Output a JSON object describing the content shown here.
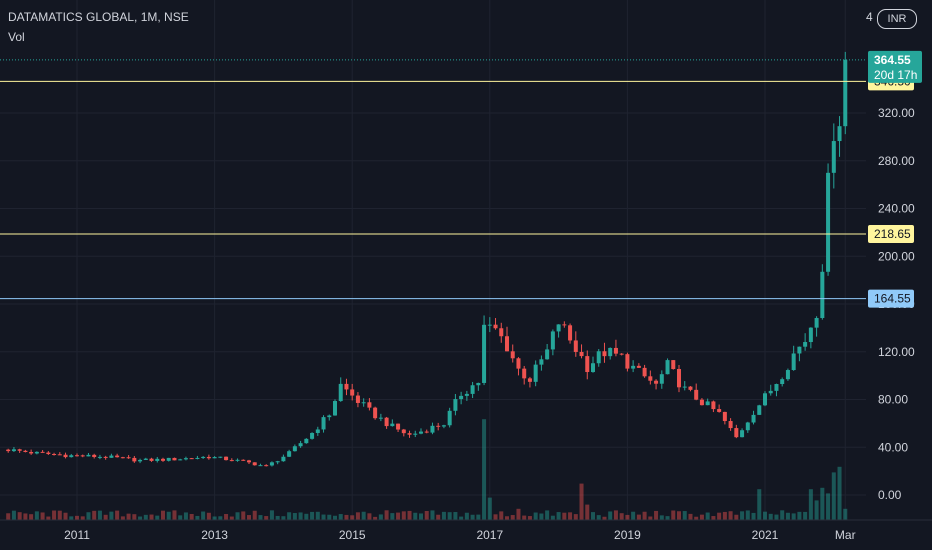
{
  "header": {
    "symbol_line": "DATAMATICS GLOBAL, 1M, NSE",
    "volume_label": "Vol",
    "currency": "INR",
    "currency_prefix": "4"
  },
  "chart_data": {
    "type": "candlestick",
    "title": "DATAMATICS GLOBAL, 1M, NSE",
    "interval": "1M",
    "exchange": "NSE",
    "price_scale": {
      "ylim": [
        -20,
        400
      ],
      "ticks": [
        "0.00",
        "40.00",
        "80.00",
        "120.00",
        "160.00",
        "200.00",
        "240.00",
        "280.00",
        "320.00"
      ],
      "tick_values": [
        0,
        40,
        80,
        120,
        160,
        200,
        240,
        280,
        320
      ]
    },
    "x_axis": {
      "ticks": [
        "2011",
        "2013",
        "2015",
        "2017",
        "2019",
        "2021",
        "Mar"
      ],
      "tick_dates": [
        "2011-01",
        "2013-01",
        "2015-01",
        "2017-01",
        "2019-01",
        "2021-01",
        "2022-03"
      ],
      "start": "2010-01",
      "end": "2022-06"
    },
    "colors": {
      "up": "#26a69a",
      "down": "#ef5350",
      "background": "#131722",
      "grid": "#1f2330",
      "text": "#d1d4dc"
    },
    "last_price": {
      "value": 364.55,
      "label": "364.55",
      "countdown": "20d 17h",
      "color": "#26a69a"
    },
    "horizontal_lines": [
      {
        "value": 346.5,
        "label": "346.50",
        "color": "#fff59d"
      },
      {
        "value": 218.65,
        "label": "218.65",
        "color": "#fff59d"
      },
      {
        "value": 164.55,
        "label": "164.55",
        "color": "#90caf9"
      }
    ],
    "price_anchors": [
      [
        "2010-01",
        38
      ],
      [
        "2010-06",
        35
      ],
      [
        "2010-12",
        33
      ],
      [
        "2011-06",
        32
      ],
      [
        "2011-12",
        29
      ],
      [
        "2012-06",
        30
      ],
      [
        "2012-12",
        32
      ],
      [
        "2013-06",
        28
      ],
      [
        "2013-10",
        24
      ],
      [
        "2014-02",
        35
      ],
      [
        "2014-06",
        52
      ],
      [
        "2014-09",
        68
      ],
      [
        "2014-11",
        92
      ],
      [
        "2015-04",
        70
      ],
      [
        "2015-08",
        57
      ],
      [
        "2015-11",
        50
      ],
      [
        "2016-02",
        55
      ],
      [
        "2016-05",
        60
      ],
      [
        "2016-08",
        85
      ],
      [
        "2016-11",
        95
      ],
      [
        "2016-12",
        140
      ],
      [
        "2017-02",
        138
      ],
      [
        "2017-04",
        125
      ],
      [
        "2017-06",
        105
      ],
      [
        "2017-08",
        97
      ],
      [
        "2017-11",
        120
      ],
      [
        "2018-01",
        145
      ],
      [
        "2018-03",
        130
      ],
      [
        "2018-06",
        108
      ],
      [
        "2018-09",
        120
      ],
      [
        "2018-12",
        115
      ],
      [
        "2019-03",
        102
      ],
      [
        "2019-06",
        92
      ],
      [
        "2019-08",
        108
      ],
      [
        "2019-11",
        88
      ],
      [
        "2020-02",
        78
      ],
      [
        "2020-05",
        68
      ],
      [
        "2020-08",
        48
      ],
      [
        "2020-11",
        70
      ],
      [
        "2021-02",
        88
      ],
      [
        "2021-04",
        102
      ],
      [
        "2021-06",
        118
      ],
      [
        "2021-08",
        130
      ],
      [
        "2021-10",
        155
      ],
      [
        "2021-11",
        195
      ],
      [
        "2021-12",
        258
      ],
      [
        "2022-01",
        310
      ],
      [
        "2022-02",
        318
      ],
      [
        "2022-03",
        362
      ]
    ],
    "volume_peaks": [
      [
        "2016-12",
        0.72
      ],
      [
        "2017-01",
        0.16
      ],
      [
        "2017-06",
        0.08
      ],
      [
        "2018-05",
        0.26
      ],
      [
        "2018-06",
        0.11
      ],
      [
        "2020-12",
        0.22
      ],
      [
        "2021-09",
        0.22
      ],
      [
        "2021-10",
        0.14
      ],
      [
        "2021-11",
        0.23
      ],
      [
        "2021-12",
        0.19
      ],
      [
        "2022-01",
        0.34
      ],
      [
        "2022-02",
        0.38
      ],
      [
        "2022-03",
        0.08
      ]
    ]
  }
}
